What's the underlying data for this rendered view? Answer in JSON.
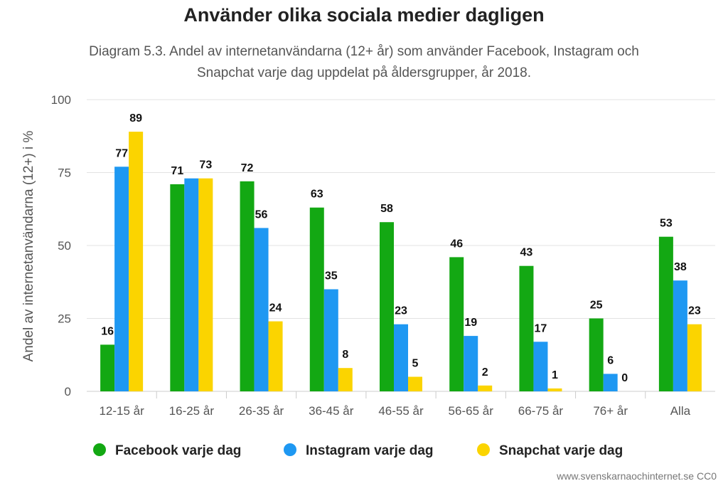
{
  "chart_data": {
    "type": "bar",
    "title": "Använder olika sociala medier dagligen",
    "subtitle_line1": "Diagram 5.3. Andel av internetanvändarna (12+ år) som använder Facebook, Instagram och",
    "subtitle_line2": "Snapchat varje dag uppdelat på åldersgrupper, år 2018.",
    "ylabel": "Andel av internetanvändarna (12+) i %",
    "xlabel": "",
    "ylim": [
      0,
      100
    ],
    "yticks": [
      0,
      25,
      50,
      75,
      100
    ],
    "grid": true,
    "legend_position": "bottom",
    "categories": [
      "12-15 år",
      "16-25 år",
      "26-35 år",
      "36-45 år",
      "46-55 år",
      "56-65 år",
      "66-75 år",
      "76+ år",
      "Alla"
    ],
    "series": [
      {
        "name": "Facebook varje dag",
        "color": "#13a813",
        "values": [
          16,
          71,
          72,
          63,
          58,
          46,
          43,
          25,
          53
        ],
        "labels": [
          "16",
          "71",
          "72",
          "63",
          "58",
          "46",
          "43",
          "25",
          "53"
        ]
      },
      {
        "name": "Instagram varje dag",
        "color": "#1e98f2",
        "values": [
          77,
          73,
          56,
          35,
          23,
          19,
          17,
          6,
          38
        ],
        "labels": [
          "77",
          "",
          "56",
          "35",
          "23",
          "19",
          "17",
          "6",
          "38"
        ]
      },
      {
        "name": "Snapchat varje dag",
        "color": "#fbd400",
        "values": [
          89,
          73,
          24,
          8,
          5,
          2,
          1,
          0,
          23
        ],
        "labels": [
          "89",
          "73",
          "24",
          "8",
          "5",
          "2",
          "1",
          "0",
          "23"
        ]
      }
    ]
  },
  "source": "www.svenskarnaochinternet.se CC0"
}
